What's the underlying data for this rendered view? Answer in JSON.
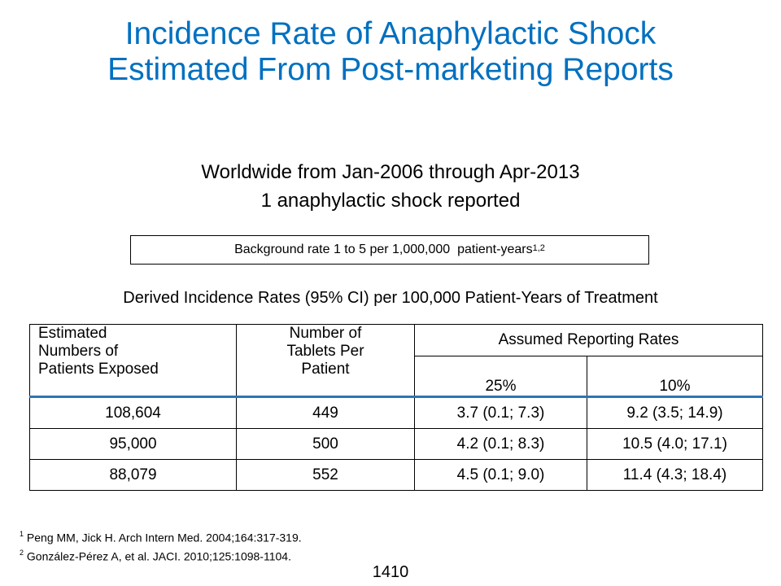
{
  "title": {
    "line1": "Incidence Rate of Anaphylactic Shock",
    "line2": "Estimated From Post-marketing Reports"
  },
  "subtitle": {
    "line1": "Worldwide from Jan-2006 through Apr-2013",
    "line2": "1 anaphylactic shock reported"
  },
  "background_box": {
    "text": "Background rate 1 to 5 per 1,000,000  patient-years",
    "sup": "1,2"
  },
  "derived_heading": "Derived Incidence Rates (95% CI) per 100,000 Patient-Years of Treatment",
  "table": {
    "headers": {
      "col1_line1": "Estimated",
      "col1_line2": "Numbers of",
      "col1_line3": "Patients Exposed",
      "col2_line1": "Number of",
      "col2_line2": "Tablets Per",
      "col2_line3": "Patient",
      "group": "Assumed Reporting Rates",
      "sub1": "25%",
      "sub2": "10%"
    },
    "rows": [
      [
        "108,604",
        "449",
        "3.7 (0.1; 7.3)",
        "9.2 (3.5; 14.9)"
      ],
      [
        "95,000",
        "500",
        "4.2 (0.1; 8.3)",
        "10.5 (4.0; 17.1)"
      ],
      [
        "88,079",
        "552",
        "4.5 (0.1; 9.0)",
        "11.4 (4.3; 18.4)"
      ]
    ]
  },
  "footnotes": [
    {
      "sup": "1",
      "text": "Peng MM, Jick H. Arch Intern Med. 2004;164:317-319."
    },
    {
      "sup": "2",
      "text": "González-Pérez A, et al. JACI. 2010;125:1098-1104."
    }
  ],
  "page_number": "1410",
  "colors": {
    "title": "#0070c0",
    "header_rule": "#2e75b6"
  }
}
